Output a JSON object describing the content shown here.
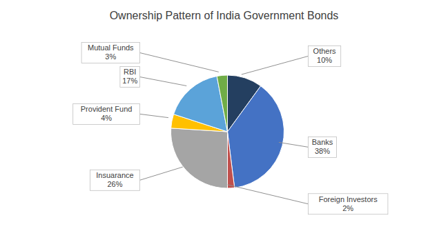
{
  "chart_data": {
    "type": "pie",
    "title": "Ownership Pattern of India Government Bonds",
    "categories": [
      "Others",
      "Banks",
      "Foreign Investors",
      "Insuarance",
      "Provident Fund",
      "RBI",
      "Mutual Funds"
    ],
    "values": [
      10,
      38,
      2,
      26,
      4,
      17,
      3
    ],
    "value_labels": [
      "10%",
      "38%",
      "2%",
      "26%",
      "4%",
      "17%",
      "3%"
    ],
    "colors": [
      "#243F60",
      "#4472C4",
      "#C0504D",
      "#A5A5A5",
      "#FFC000",
      "#5BA3D9",
      "#70AD47"
    ],
    "data_labels": true
  }
}
